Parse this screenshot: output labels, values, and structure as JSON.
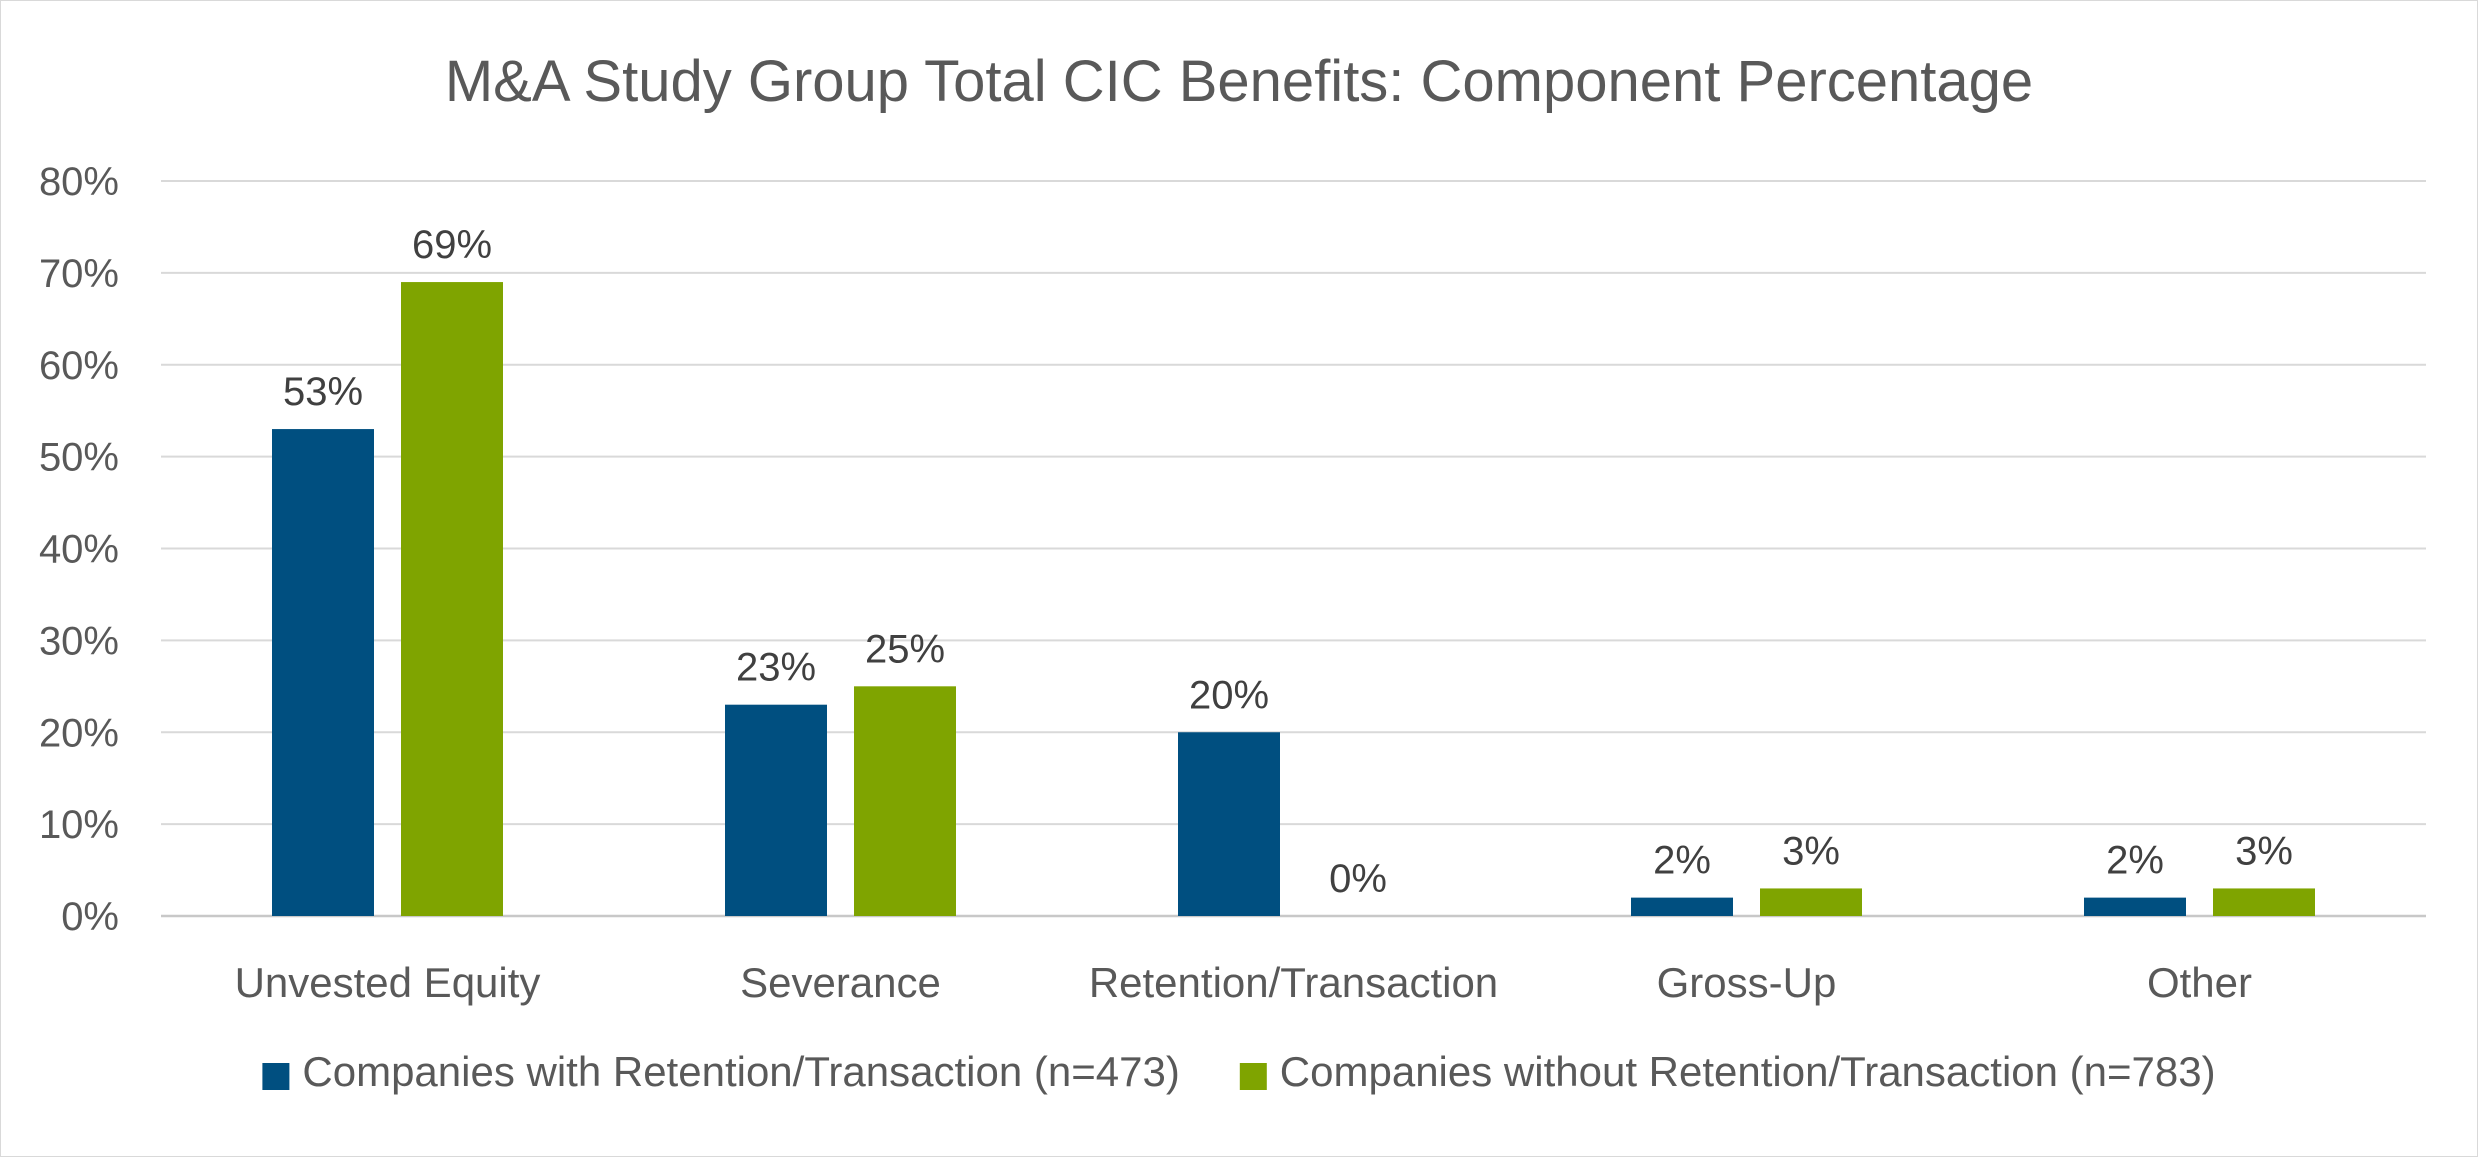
{
  "chart_data": {
    "type": "bar",
    "title": "M&A Study Group Total CIC Benefits: Component Percentage",
    "xlabel": "",
    "ylabel": "",
    "ylim": [
      0,
      80
    ],
    "y_ticks": [
      "0%",
      "10%",
      "20%",
      "30%",
      "40%",
      "50%",
      "60%",
      "70%",
      "80%"
    ],
    "grid": true,
    "legend_position": "bottom",
    "categories": [
      "Unvested Equity",
      "Severance",
      "Retention/Transaction",
      "Gross-Up",
      "Other"
    ],
    "series": [
      {
        "name": "Companies with Retention/Transaction (n=473)",
        "color": "#004f80",
        "values": [
          53,
          23,
          20,
          2,
          2
        ],
        "labels": [
          "53%",
          "23%",
          "20%",
          "2%",
          "2%"
        ]
      },
      {
        "name": "Companies without Retention/Transaction (n=783)",
        "color": "#7fa400",
        "values": [
          69,
          25,
          0,
          3,
          3
        ],
        "labels": [
          "69%",
          "25%",
          "0%",
          "3%",
          "3%"
        ]
      }
    ]
  }
}
